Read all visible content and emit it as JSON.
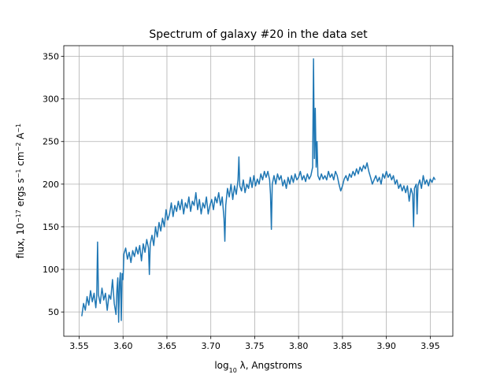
{
  "chart_data": {
    "type": "line",
    "title": "Spectrum of galaxy #20 in the data set",
    "xlabel": [
      "log",
      "10",
      " λ, Angstroms"
    ],
    "ylabel": [
      "flux, 10",
      "−17",
      " ergs s",
      "−1",
      " cm",
      "−2",
      " A",
      "−1"
    ],
    "color": "#1f77b4",
    "grid": true,
    "xlim": [
      3.5325,
      3.9757
    ],
    "ylim": [
      21.5,
      362.5
    ],
    "xticks": [
      3.55,
      {
        "value": 3.6,
        "label": "3.60"
      },
      3.65,
      {
        "value": 3.7,
        "label": "3.70"
      },
      3.75,
      {
        "value": 3.8,
        "label": "3.80"
      },
      3.85,
      {
        "value": 3.9,
        "label": "3.90"
      },
      3.95
    ],
    "yticks": [
      50,
      100,
      150,
      200,
      250,
      300,
      350
    ],
    "x": [
      3.553,
      3.555,
      3.557,
      3.559,
      3.561,
      3.563,
      3.565,
      3.567,
      3.569,
      3.57,
      3.571,
      3.572,
      3.574,
      3.576,
      3.578,
      3.58,
      3.582,
      3.584,
      3.586,
      3.588,
      3.59,
      3.592,
      3.593,
      3.594,
      3.595,
      3.596,
      3.597,
      3.598,
      3.599,
      3.6,
      3.601,
      3.603,
      3.605,
      3.607,
      3.609,
      3.611,
      3.613,
      3.615,
      3.617,
      3.619,
      3.621,
      3.623,
      3.625,
      3.627,
      3.629,
      3.63,
      3.631,
      3.633,
      3.635,
      3.637,
      3.639,
      3.641,
      3.643,
      3.645,
      3.647,
      3.649,
      3.651,
      3.653,
      3.655,
      3.657,
      3.659,
      3.661,
      3.663,
      3.665,
      3.667,
      3.669,
      3.671,
      3.673,
      3.675,
      3.677,
      3.679,
      3.681,
      3.683,
      3.685,
      3.687,
      3.689,
      3.691,
      3.693,
      3.695,
      3.697,
      3.699,
      3.701,
      3.703,
      3.705,
      3.707,
      3.709,
      3.711,
      3.713,
      3.715,
      3.716,
      3.717,
      3.719,
      3.721,
      3.723,
      3.725,
      3.727,
      3.729,
      3.731,
      3.732,
      3.733,
      3.735,
      3.737,
      3.739,
      3.741,
      3.743,
      3.745,
      3.747,
      3.749,
      3.751,
      3.753,
      3.755,
      3.757,
      3.759,
      3.761,
      3.763,
      3.765,
      3.767,
      3.768,
      3.769,
      3.77,
      3.772,
      3.774,
      3.776,
      3.778,
      3.78,
      3.782,
      3.784,
      3.786,
      3.788,
      3.79,
      3.792,
      3.794,
      3.796,
      3.798,
      3.8,
      3.802,
      3.804,
      3.806,
      3.808,
      3.81,
      3.812,
      3.814,
      3.816,
      3.817,
      3.818,
      3.819,
      3.82,
      3.821,
      3.822,
      3.824,
      3.826,
      3.828,
      3.83,
      3.832,
      3.834,
      3.836,
      3.838,
      3.84,
      3.842,
      3.844,
      3.846,
      3.848,
      3.85,
      3.852,
      3.854,
      3.856,
      3.858,
      3.86,
      3.862,
      3.864,
      3.866,
      3.868,
      3.87,
      3.872,
      3.874,
      3.876,
      3.878,
      3.88,
      3.882,
      3.884,
      3.886,
      3.888,
      3.89,
      3.892,
      3.894,
      3.896,
      3.898,
      3.9,
      3.902,
      3.904,
      3.906,
      3.908,
      3.91,
      3.912,
      3.914,
      3.916,
      3.918,
      3.92,
      3.922,
      3.924,
      3.926,
      3.928,
      3.93,
      3.931,
      3.932,
      3.934,
      3.935,
      3.936,
      3.938,
      3.94,
      3.942,
      3.944,
      3.946,
      3.948,
      3.95,
      3.952,
      3.954,
      3.9556
    ],
    "values": [
      45,
      60,
      52,
      68,
      58,
      75,
      62,
      72,
      55,
      68,
      132,
      70,
      60,
      78,
      64,
      72,
      52,
      70,
      65,
      88,
      60,
      47,
      75,
      90,
      38,
      85,
      96,
      40,
      95,
      88,
      118,
      125,
      112,
      120,
      108,
      122,
      115,
      126,
      118,
      128,
      110,
      130,
      120,
      135,
      125,
      94,
      130,
      140,
      128,
      150,
      138,
      155,
      145,
      160,
      150,
      170,
      158,
      165,
      178,
      162,
      175,
      168,
      180,
      170,
      182,
      165,
      178,
      172,
      185,
      168,
      180,
      175,
      190,
      170,
      182,
      165,
      178,
      172,
      185,
      165,
      175,
      182,
      170,
      185,
      178,
      190,
      175,
      185,
      160,
      133,
      175,
      195,
      185,
      200,
      182,
      198,
      188,
      205,
      232,
      198,
      192,
      205,
      190,
      200,
      195,
      208,
      196,
      210,
      198,
      206,
      200,
      212,
      205,
      215,
      208,
      215,
      205,
      188,
      147,
      200,
      210,
      200,
      212,
      205,
      210,
      198,
      205,
      195,
      208,
      200,
      210,
      202,
      212,
      205,
      208,
      215,
      205,
      210,
      203,
      212,
      206,
      210,
      220,
      347,
      230,
      289,
      220,
      250,
      210,
      205,
      212,
      206,
      210,
      205,
      215,
      208,
      212,
      205,
      215,
      210,
      200,
      192,
      198,
      206,
      210,
      204,
      212,
      208,
      215,
      210,
      218,
      212,
      220,
      215,
      222,
      218,
      225,
      215,
      208,
      200,
      205,
      210,
      203,
      208,
      200,
      212,
      207,
      215,
      208,
      212,
      205,
      210,
      200,
      205,
      195,
      200,
      192,
      198,
      190,
      198,
      180,
      195,
      188,
      150,
      195,
      200,
      165,
      198,
      205,
      195,
      210,
      200,
      205,
      198,
      206,
      202,
      208,
      205
    ]
  }
}
